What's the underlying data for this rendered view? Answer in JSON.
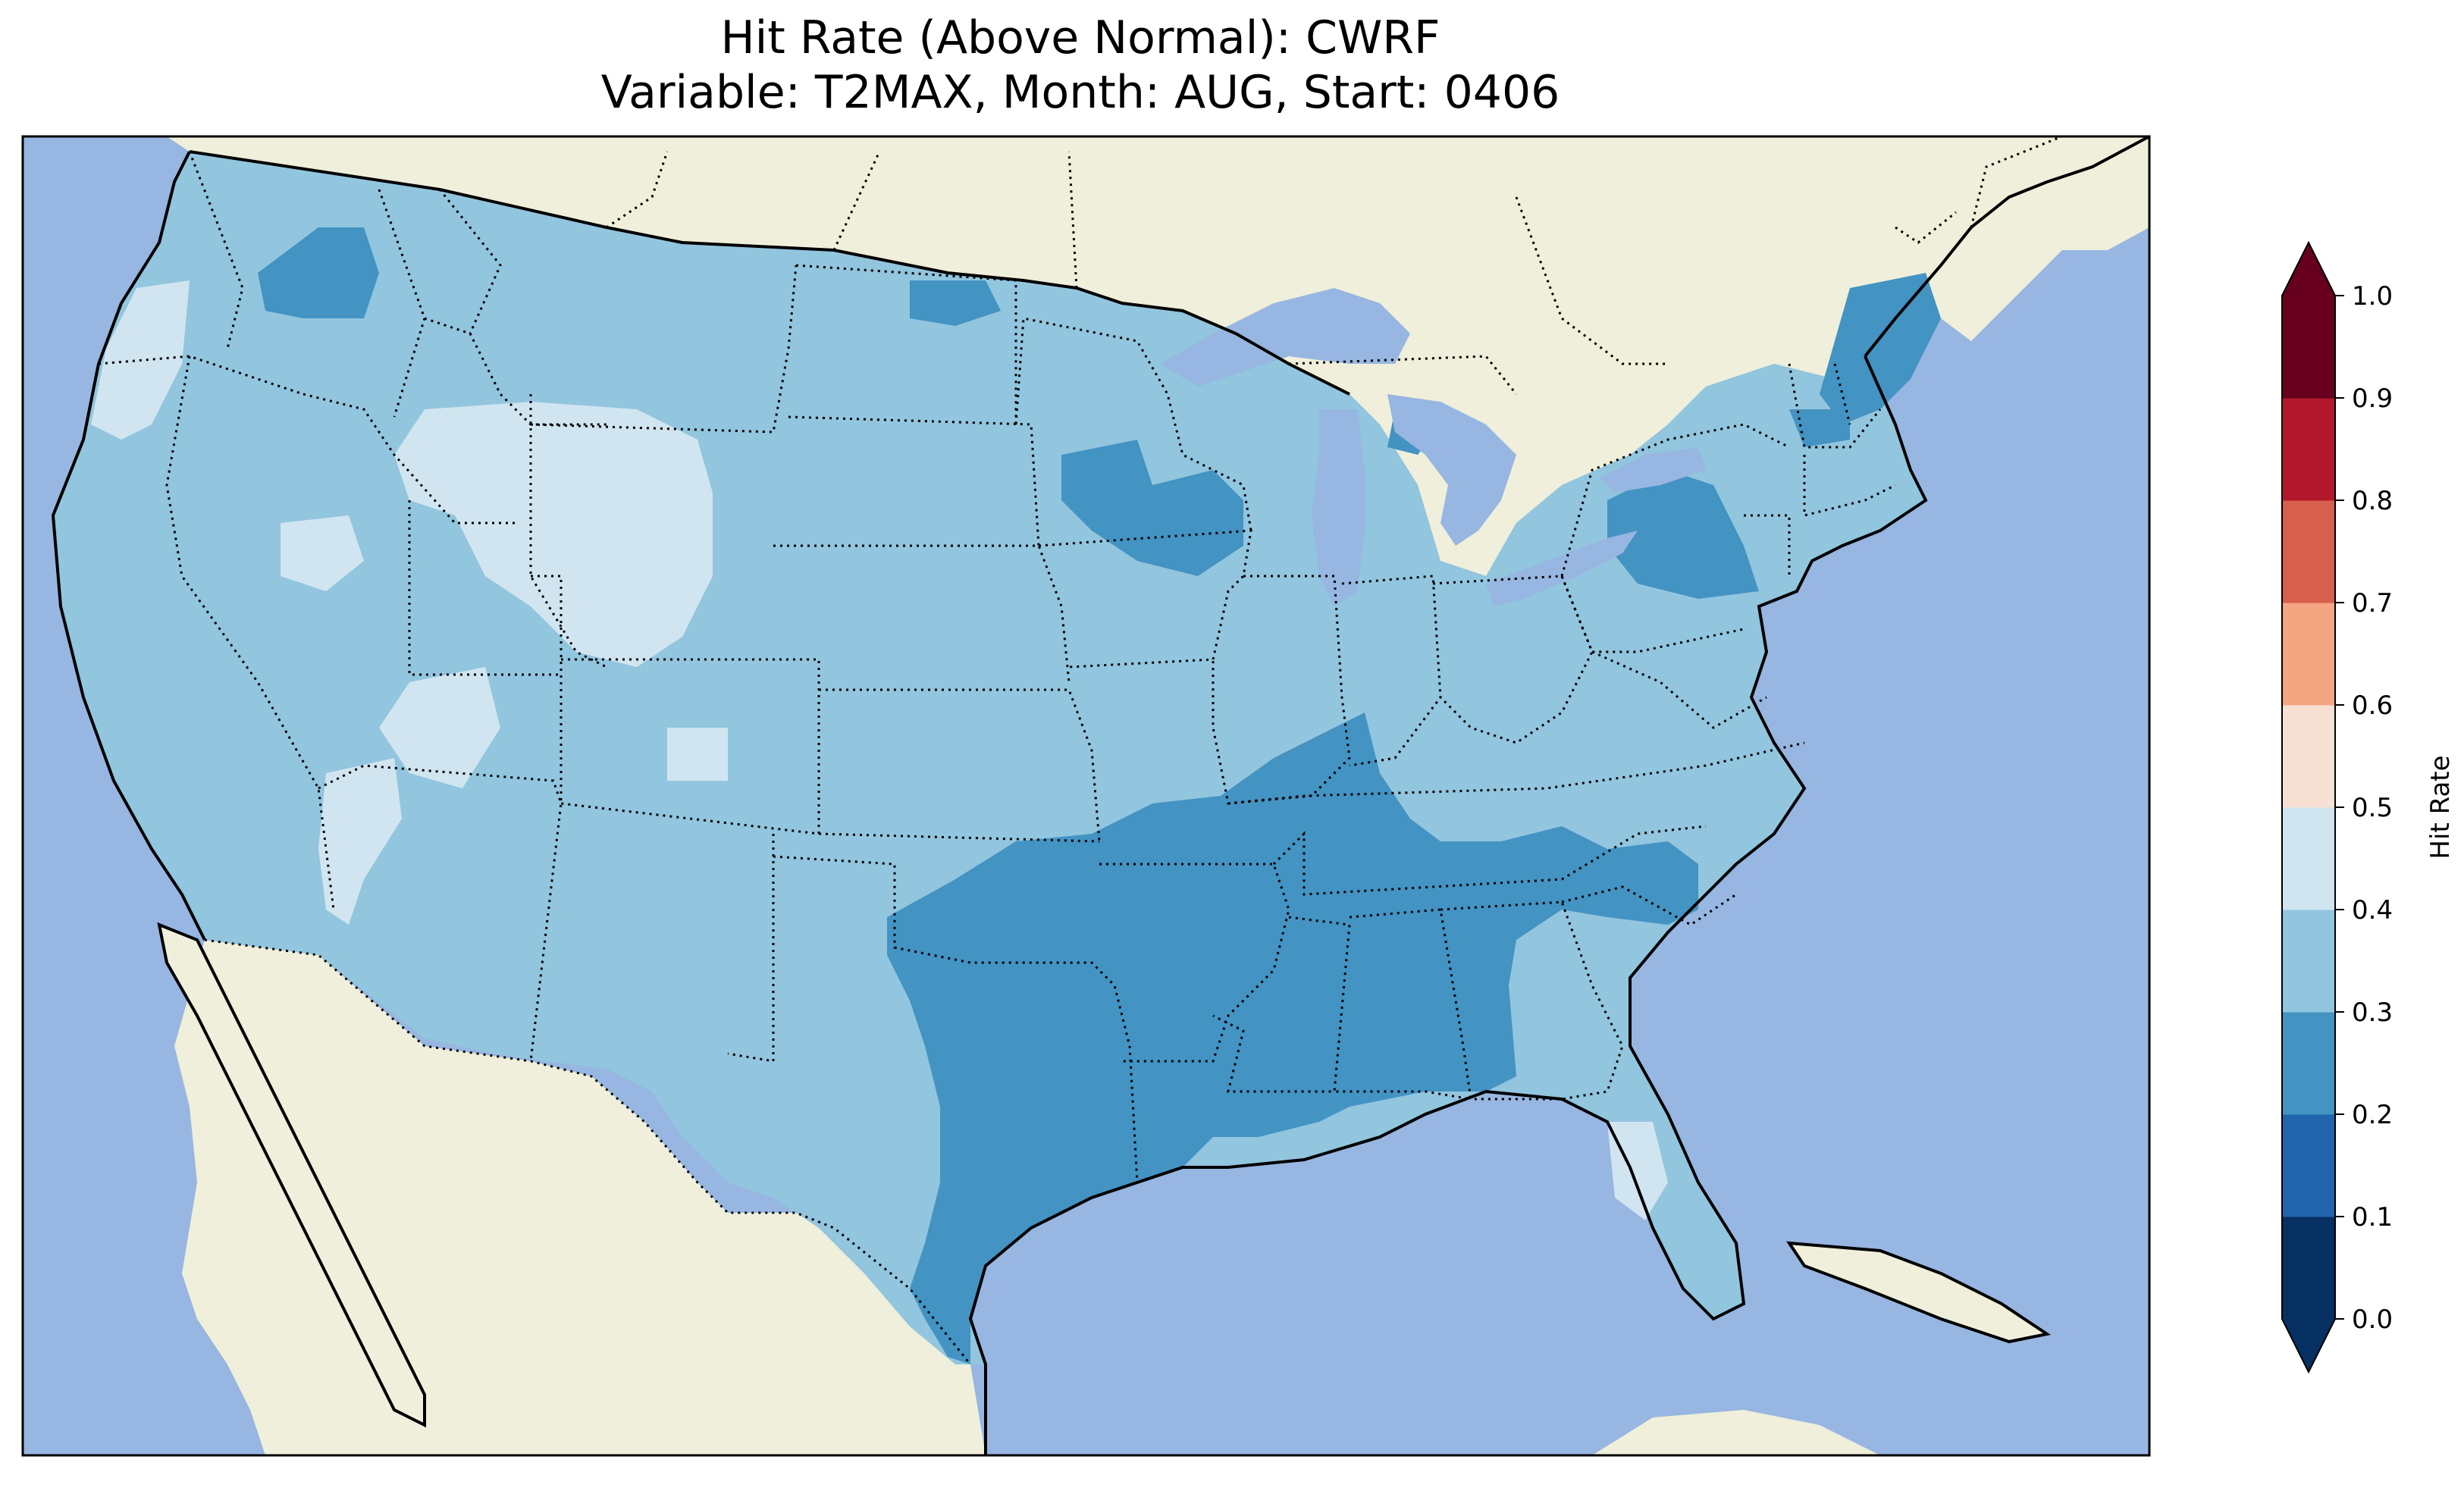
{
  "figure": {
    "title_line1": "Hit Rate (Above Normal): CWRF",
    "title_line2": "Variable: T2MAX, Month: AUG, Start: 0406"
  },
  "colors": {
    "ocean": "#97b6e1",
    "land_outside": "#efefdb",
    "lake": "#97b6e1",
    "border": "#000000"
  },
  "colorbar": {
    "label": "Hit Rate",
    "ticks": [
      "0.0",
      "0.1",
      "0.2",
      "0.3",
      "0.4",
      "0.5",
      "0.6",
      "0.7",
      "0.8",
      "0.9",
      "1.0"
    ],
    "bins": [
      {
        "range": [
          0.0,
          0.1
        ],
        "color": "#053061"
      },
      {
        "range": [
          0.1,
          0.2
        ],
        "color": "#2166ac"
      },
      {
        "range": [
          0.2,
          0.3
        ],
        "color": "#4393c3"
      },
      {
        "range": [
          0.3,
          0.4
        ],
        "color": "#92c5de"
      },
      {
        "range": [
          0.4,
          0.5
        ],
        "color": "#d1e5f0"
      },
      {
        "range": [
          0.5,
          0.6
        ],
        "color": "#f7e0d4"
      },
      {
        "range": [
          0.6,
          0.7
        ],
        "color": "#f4a582"
      },
      {
        "range": [
          0.7,
          0.8
        ],
        "color": "#d6604d"
      },
      {
        "range": [
          0.8,
          0.9
        ],
        "color": "#b2182b"
      },
      {
        "range": [
          0.9,
          1.0
        ],
        "color": "#67001f"
      }
    ],
    "under_color": "#053061",
    "over_color": "#67001f",
    "extend": "both"
  },
  "regions": [
    {
      "name": "conus-background",
      "bin": "0.3-0.4"
    },
    {
      "name": "pacific-northwest-patch",
      "bin": "0.2-0.3"
    },
    {
      "name": "wyoming-patch",
      "bin": "0.4-0.5"
    },
    {
      "name": "south-central-patch",
      "bin": "0.2-0.3"
    },
    {
      "name": "northeast-patch",
      "bin": "0.2-0.3"
    },
    {
      "name": "florida-patch",
      "bin": "0.4-0.5"
    }
  ]
}
